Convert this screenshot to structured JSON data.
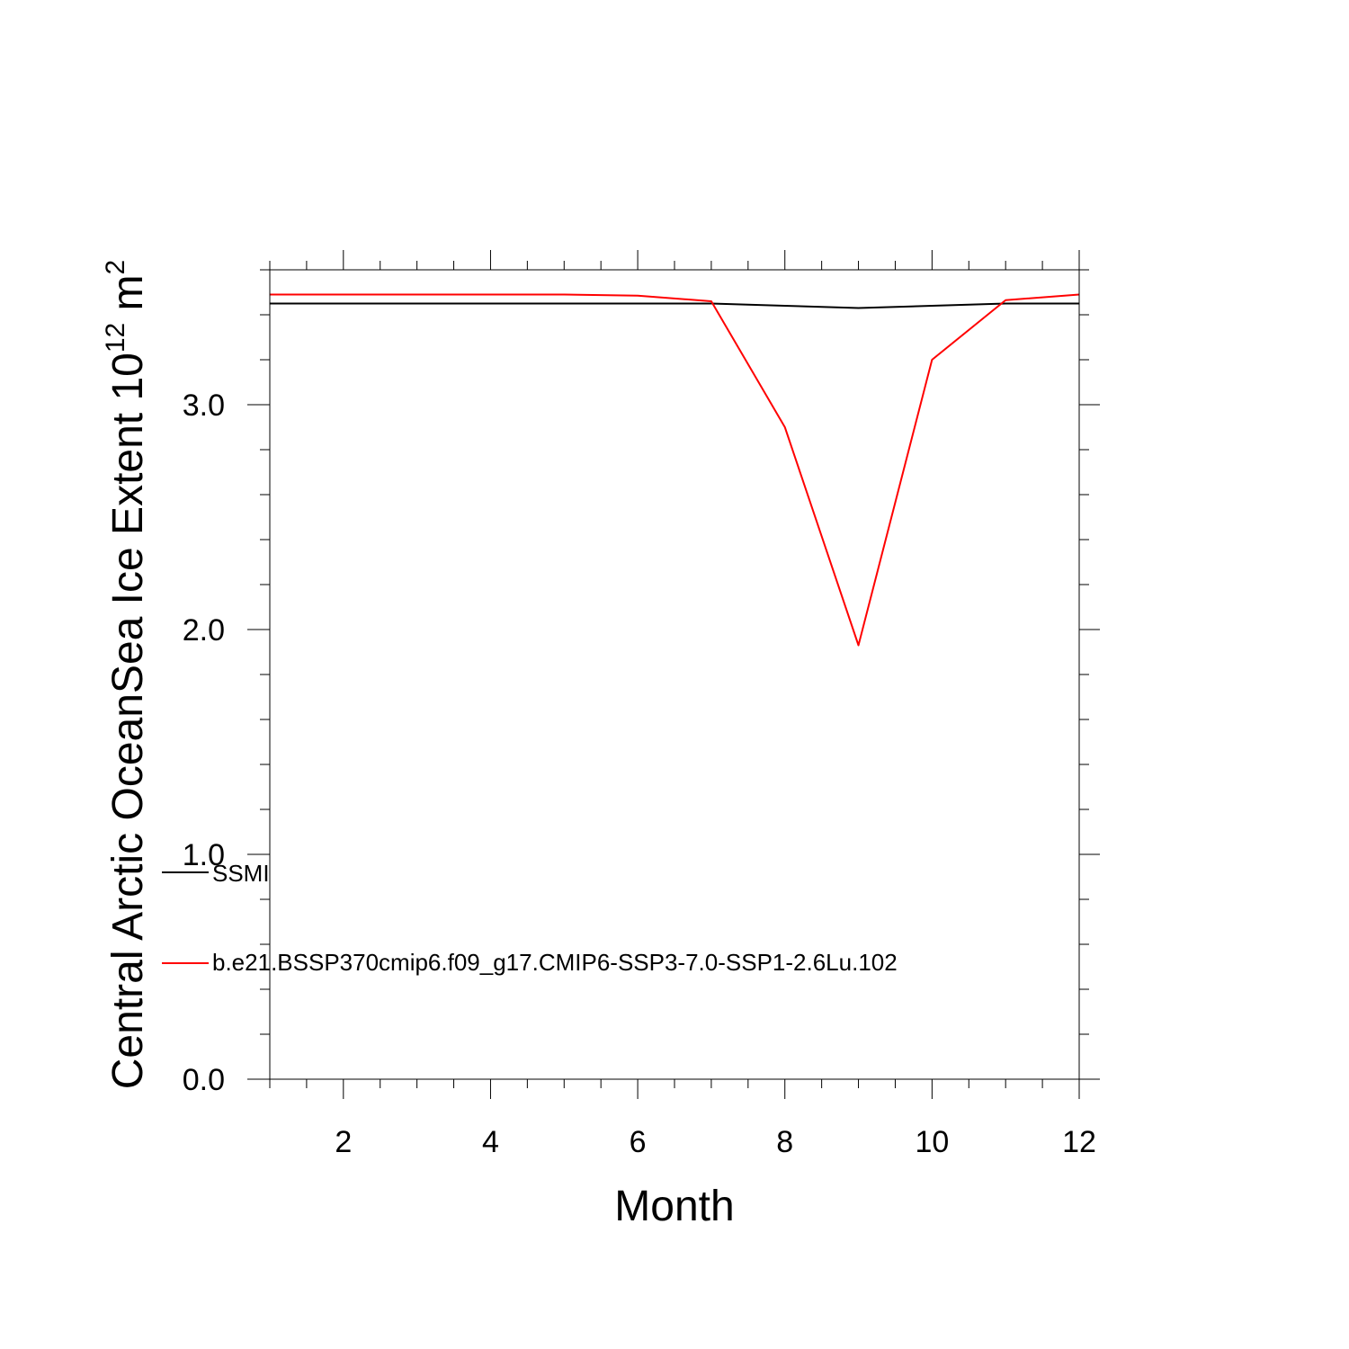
{
  "chart_data": {
    "type": "line",
    "xlabel": "Month",
    "ylabel_main": "Central Arctic OceanSea Ice Extent 10",
    "ylabel_exp": "12",
    "ylabel_unit": "m",
    "ylabel_unit_exp": "2",
    "xlim": [
      1,
      12
    ],
    "ylim": [
      0,
      3.6
    ],
    "x_ticks": [
      2,
      4,
      6,
      8,
      10,
      12
    ],
    "x_tick_labels": [
      "2",
      "4",
      "6",
      "8",
      "10",
      "12"
    ],
    "y_ticks": [
      0,
      1,
      2,
      3
    ],
    "y_tick_labels": [
      "0.0",
      "1.0",
      "2.0",
      "3.0"
    ],
    "x": [
      1,
      2,
      3,
      4,
      5,
      6,
      7,
      8,
      9,
      10,
      11,
      12
    ],
    "series": [
      {
        "name": "SSMI",
        "color": "#000000",
        "values": [
          3.45,
          3.45,
          3.45,
          3.45,
          3.45,
          3.45,
          3.45,
          3.44,
          3.43,
          3.44,
          3.45,
          3.45
        ]
      },
      {
        "name": "b.e21.BSSP370cmip6.f09_g17.CMIP6-SSP3-7.0-SSP1-2.6Lu.102",
        "color": "#ff0000",
        "values": [
          3.49,
          3.49,
          3.49,
          3.49,
          3.49,
          3.485,
          3.46,
          2.9,
          1.93,
          3.2,
          3.465,
          3.49
        ]
      }
    ],
    "legend_position": "lower-left inside",
    "grid": false
  }
}
